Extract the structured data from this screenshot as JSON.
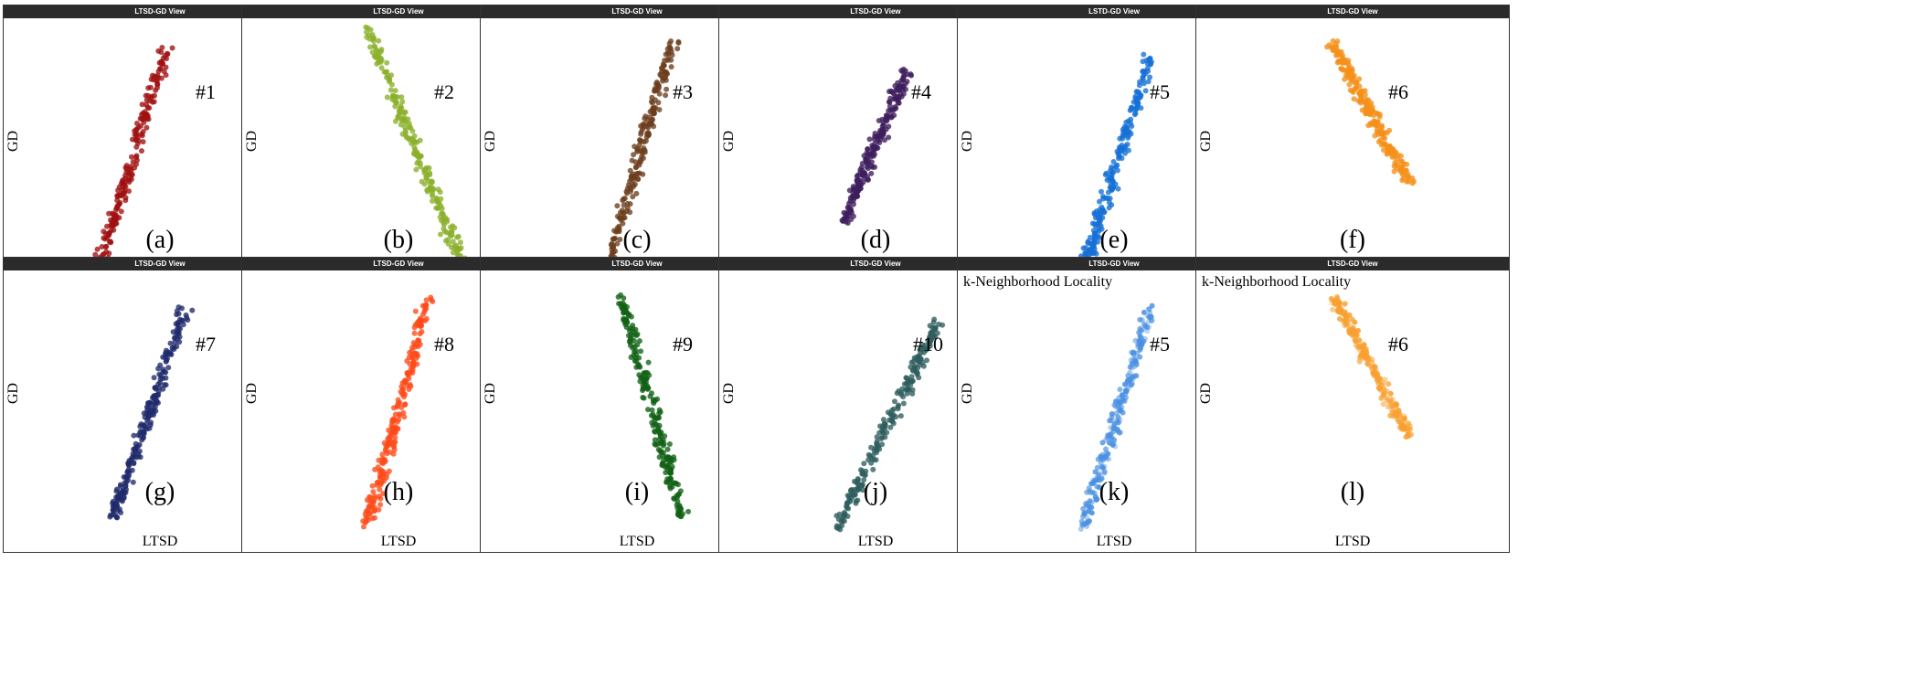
{
  "view_title": "LTSD-GD View",
  "ylabel": "GD",
  "xlabel": "LTSD",
  "top_label": "k-Neighborhood Locality",
  "panels": [
    {
      "caption": "(a)",
      "cluster": "#1",
      "title": "LTSD-GD View",
      "top_label": "",
      "color": "#a01010"
    },
    {
      "caption": "(b)",
      "cluster": "#2",
      "title": "LTSD-GD View",
      "top_label": "",
      "color": "#8ab02a"
    },
    {
      "caption": "(c)",
      "cluster": "#3",
      "title": "LTSD-GD View",
      "top_label": "",
      "color": "#6b3d1e"
    },
    {
      "caption": "(d)",
      "cluster": "#4",
      "title": "LTSD-GD View",
      "top_label": "",
      "color": "#3d1e5c"
    },
    {
      "caption": "(e)",
      "cluster": "#5",
      "title": "LSTD-GD View",
      "top_label": "",
      "color": "#1570d6"
    },
    {
      "caption": "(f)",
      "cluster": "#6",
      "title": "LTSD-GD View",
      "top_label": "",
      "color": "#f5901a"
    },
    {
      "caption": "(g)",
      "cluster": "#7",
      "title": "LTSD-GD View",
      "top_label": "",
      "color": "#1f2a6b"
    },
    {
      "caption": "(h)",
      "cluster": "#8",
      "title": "LTSD-GD View",
      "top_label": "",
      "color": "#ff4a1a"
    },
    {
      "caption": "(i)",
      "cluster": "#9",
      "title": "LTSD-GD View",
      "top_label": "",
      "color": "#116114"
    },
    {
      "caption": "(j)",
      "cluster": "#10",
      "title": "LTSD-GD View",
      "top_label": "",
      "color": "#2f5e5e"
    },
    {
      "caption": "(k)",
      "cluster": "#5",
      "title": "LTSD-GD View",
      "top_label": "k-Neighborhood Locality",
      "color": "#4a90e2"
    },
    {
      "caption": "(l)",
      "cluster": "#6",
      "title": "LTSD-GD View",
      "top_label": "k-Neighborhood Locality",
      "color": "#f8a030"
    }
  ],
  "chart_data": {
    "type": "scatter",
    "xlabel": "LTSD",
    "ylabel": "GD",
    "grid": false,
    "panels": [
      {
        "name": "#1",
        "trend": [
          [
            0.3,
            0.05
          ],
          [
            0.52,
            0.9
          ]
        ],
        "points": 220
      },
      {
        "name": "#2",
        "trend": [
          [
            0.4,
            0.98
          ],
          [
            0.72,
            0.05
          ]
        ],
        "points": 220
      },
      {
        "name": "#3",
        "trend": [
          [
            0.4,
            0.05
          ],
          [
            0.62,
            0.95
          ]
        ],
        "points": 220
      },
      {
        "name": "#4",
        "trend": [
          [
            0.4,
            0.25
          ],
          [
            0.6,
            0.82
          ]
        ],
        "points": 220
      },
      {
        "name": "#5",
        "trend": [
          [
            0.4,
            0.05
          ],
          [
            0.62,
            0.88
          ]
        ],
        "points": 220
      },
      {
        "name": "#6",
        "trend": [
          [
            0.44,
            0.92
          ],
          [
            0.68,
            0.4
          ]
        ],
        "points": 220
      },
      {
        "name": "#7",
        "trend": [
          [
            0.35,
            0.08
          ],
          [
            0.58,
            0.88
          ]
        ],
        "points": 220
      },
      {
        "name": "#8",
        "trend": [
          [
            0.4,
            0.05
          ],
          [
            0.6,
            0.92
          ]
        ],
        "points": 220
      },
      {
        "name": "#9",
        "trend": [
          [
            0.45,
            0.92
          ],
          [
            0.65,
            0.08
          ]
        ],
        "points": 220
      },
      {
        "name": "#10",
        "trend": [
          [
            0.38,
            0.05
          ],
          [
            0.7,
            0.82
          ]
        ],
        "points": 220
      },
      {
        "name": "#5",
        "trend": [
          [
            0.4,
            0.05
          ],
          [
            0.62,
            0.88
          ]
        ],
        "points": 220
      },
      {
        "name": "#6",
        "trend": [
          [
            0.44,
            0.92
          ],
          [
            0.68,
            0.4
          ]
        ],
        "points": 220
      }
    ]
  }
}
